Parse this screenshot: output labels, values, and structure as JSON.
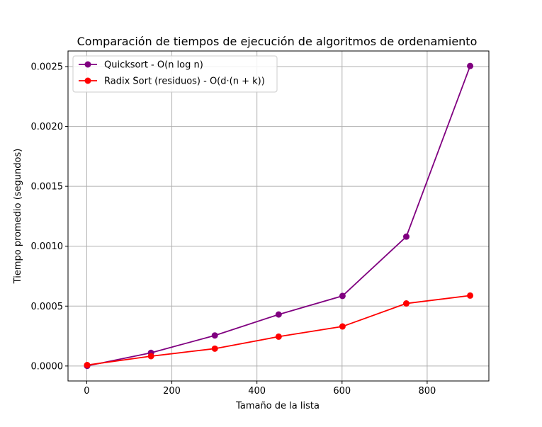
{
  "chart_data": {
    "type": "line",
    "title": "Comparación de tiempos de ejecución de algoritmos de ordenamiento",
    "xlabel": "Tamaño de la lista",
    "ylabel": "Tiempo promedio (segundos)",
    "x": [
      1,
      151,
      301,
      451,
      601,
      751,
      901
    ],
    "xlim": [
      -44,
      945
    ],
    "ylim": [
      -0.000125,
      0.00263
    ],
    "xticks": [
      0,
      200,
      400,
      600,
      800
    ],
    "xtick_labels": [
      "0",
      "200",
      "400",
      "600",
      "800"
    ],
    "yticks": [
      0,
      0.0005,
      0.001,
      0.0015,
      0.002,
      0.0025
    ],
    "ytick_labels": [
      "0.0000",
      "0.0005",
      "0.0010",
      "0.0015",
      "0.0020",
      "0.0025"
    ],
    "grid": true,
    "legend_position": "top-left",
    "series": [
      {
        "name": "Quicksort - O(n log n)",
        "color": "#800080",
        "marker": "circle",
        "values": [
          1e-06,
          0.00011,
          0.000255,
          0.00043,
          0.000585,
          0.00108,
          0.002505
        ]
      },
      {
        "name": "Radix Sort (residuos) - O(d·(n + k))",
        "color": "#ff0000",
        "marker": "circle",
        "values": [
          8e-06,
          8.2e-05,
          0.000145,
          0.000245,
          0.00033,
          0.000522,
          0.000588
        ]
      }
    ]
  }
}
